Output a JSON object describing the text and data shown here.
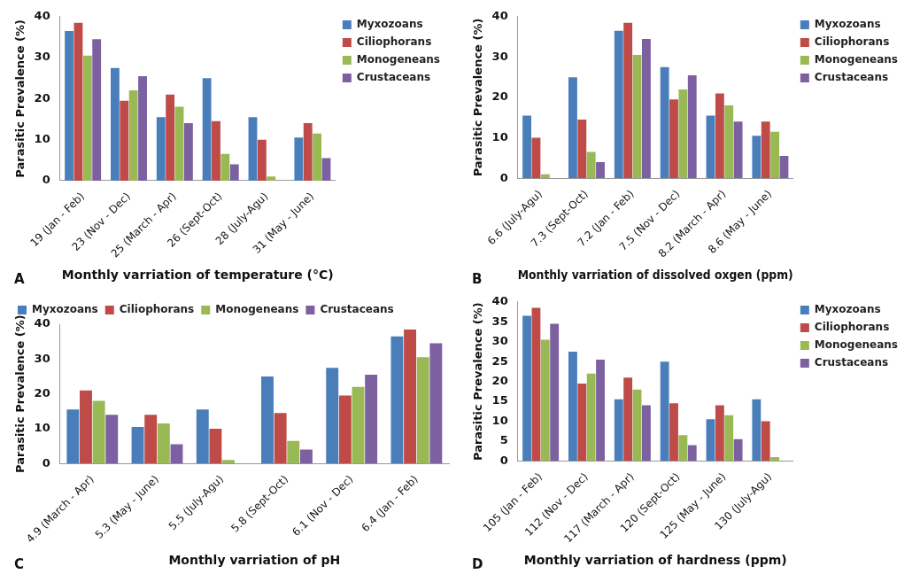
{
  "chart_data": [
    {
      "type": "bar",
      "xlabel": "Monthly varriation of temperature (°C)",
      "ylabel": "Parasitic Prevalence (%)",
      "annotations": [
        "A"
      ],
      "categories": [
        "19 (Jan - Feb)",
        "23 (Nov - Dec)",
        "25 (March - Apr)",
        "26 (Sept-Oct)",
        "28 (July-Agu)",
        "31 (May - June)"
      ],
      "series": [
        {
          "name": "Myxozoans",
          "color": "#4a7ebb",
          "values": [
            36.5,
            27.5,
            15.5,
            25,
            15.5,
            10.5
          ]
        },
        {
          "name": "Ciliophorans",
          "color": "#be4b48",
          "values": [
            38.5,
            19.5,
            21,
            14.5,
            10,
            14
          ]
        },
        {
          "name": "Monogeneans",
          "color": "#98b954",
          "values": [
            30.5,
            22,
            18,
            6.5,
            1,
            11.5
          ]
        },
        {
          "name": "Crustaceans",
          "color": "#7d60a0",
          "values": [
            34.5,
            25.5,
            14,
            4,
            0,
            5.5
          ]
        }
      ],
      "ylim": [
        0,
        40
      ],
      "yticks": [
        0,
        10,
        20,
        30,
        40
      ],
      "grid": false,
      "legend": "top right"
    },
    {
      "type": "bar",
      "xlabel": "Monthly varriation of dissolved oxgen (ppm)",
      "ylabel": "Parasitic Prevalence (%)",
      "annotations": [
        "B"
      ],
      "categories": [
        "6.6 (July-Agu)",
        "7.3 (Sept-Oct)",
        "7.2 (Jan - Feb)",
        "7.5 (Nov - Dec)",
        "8.2 (March - Apr)",
        "8.6 (May - June)"
      ],
      "series": [
        {
          "name": "Myxozoans",
          "color": "#4a7ebb",
          "values": [
            15.5,
            25,
            36.5,
            27.5,
            15.5,
            10.5
          ]
        },
        {
          "name": "Ciliophorans",
          "color": "#be4b48",
          "values": [
            10,
            14.5,
            38.5,
            19.5,
            21,
            14
          ]
        },
        {
          "name": "Monogeneans",
          "color": "#98b954",
          "values": [
            1,
            6.5,
            30.5,
            22,
            18,
            11.5
          ]
        },
        {
          "name": "Crustaceans",
          "color": "#7d60a0",
          "values": [
            0,
            4,
            34.5,
            25.5,
            14,
            5.5
          ]
        }
      ],
      "ylim": [
        0,
        40
      ],
      "yticks": [
        0,
        10,
        20,
        30,
        40
      ],
      "grid": false,
      "legend": "top right"
    },
    {
      "type": "bar",
      "xlabel": "Monthly varriation of pH",
      "ylabel": "Parasitic Prevalence (%)",
      "annotations": [
        "C"
      ],
      "categories": [
        "4.9 (March - Apr)",
        "5.3 (May - June)",
        "5.5 (July-Agu)",
        "5.8 (Sept-Oct)",
        "6.1 (Nov - Dec)",
        "6.4 (Jan - Feb)"
      ],
      "series": [
        {
          "name": "Myxozoans",
          "color": "#4a7ebb",
          "values": [
            15.5,
            10.5,
            15.5,
            25,
            27.5,
            36.5
          ]
        },
        {
          "name": "Ciliophorans",
          "color": "#be4b48",
          "values": [
            21,
            14,
            10,
            14.5,
            19.5,
            38.5
          ]
        },
        {
          "name": "Monogeneans",
          "color": "#98b954",
          "values": [
            18,
            11.5,
            1,
            6.5,
            22,
            30.5
          ]
        },
        {
          "name": "Crustaceans",
          "color": "#7d60a0",
          "values": [
            14,
            5.5,
            0,
            4,
            25.5,
            34.5
          ]
        }
      ],
      "ylim": [
        0,
        40
      ],
      "yticks": [
        0,
        10,
        20,
        30,
        40
      ],
      "grid": false,
      "legend": "top left"
    },
    {
      "type": "bar",
      "xlabel": "Monthly varriation of hardness (ppm)",
      "ylabel": "Parasitic Prevalence (%)",
      "annotations": [
        "D"
      ],
      "categories": [
        "105 (Jan - Feb)",
        "112 (Nov - Dec)",
        "117 (March - Apr)",
        "120 (Sept-Oct)",
        "125 (May - June)",
        "130 (July-Agu)"
      ],
      "series": [
        {
          "name": "Myxozoans",
          "color": "#4a7ebb",
          "values": [
            36.5,
            27.5,
            15.5,
            25,
            10.5,
            15.5
          ]
        },
        {
          "name": "Ciliophorans",
          "color": "#be4b48",
          "values": [
            38.5,
            19.5,
            21,
            14.5,
            14,
            10
          ]
        },
        {
          "name": "Monogeneans",
          "color": "#98b954",
          "values": [
            30.5,
            22,
            18,
            6.5,
            11.5,
            1
          ]
        },
        {
          "name": "Crustaceans",
          "color": "#7d60a0",
          "values": [
            34.5,
            25.5,
            14,
            4,
            5.5,
            0
          ]
        }
      ],
      "ylim": [
        0,
        40
      ],
      "yticks": [
        0,
        5,
        10,
        15,
        20,
        25,
        30,
        35,
        40
      ],
      "grid": false,
      "legend": "top right"
    }
  ]
}
